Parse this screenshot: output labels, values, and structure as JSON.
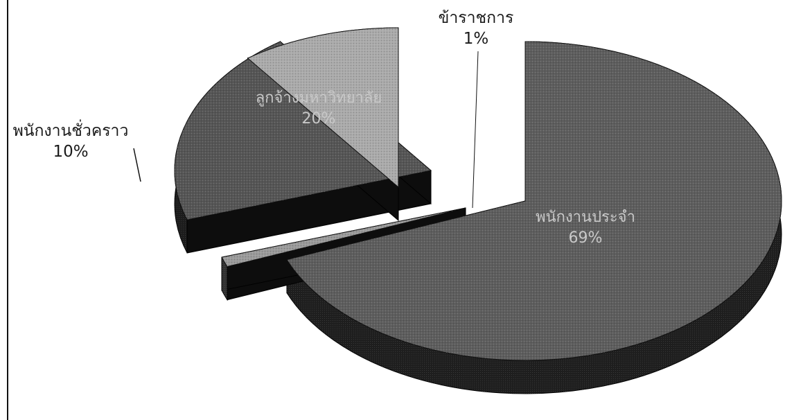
{
  "chart_data": {
    "type": "pie",
    "style": "3d-exploded-pie",
    "title": "",
    "legend": "none",
    "slices": [
      {
        "label": "พนักงานประจำ",
        "percent_label": "69%",
        "value": 69,
        "label_position": "inside",
        "color": "#5e5e5e"
      },
      {
        "label": "ข้าราชการ",
        "percent_label": "1%",
        "value": 1,
        "label_position": "outside",
        "color": "#9a9a9a"
      },
      {
        "label": "ลูกจ้างมหาวิทยาลัย",
        "percent_label": "20%",
        "value": 20,
        "label_position": "inside",
        "color": "#565656"
      },
      {
        "label": "พนักงานชั่วคราว",
        "percent_label": "10%",
        "value": 10,
        "label_position": "outside",
        "color": "#aaaaaa"
      }
    ]
  }
}
